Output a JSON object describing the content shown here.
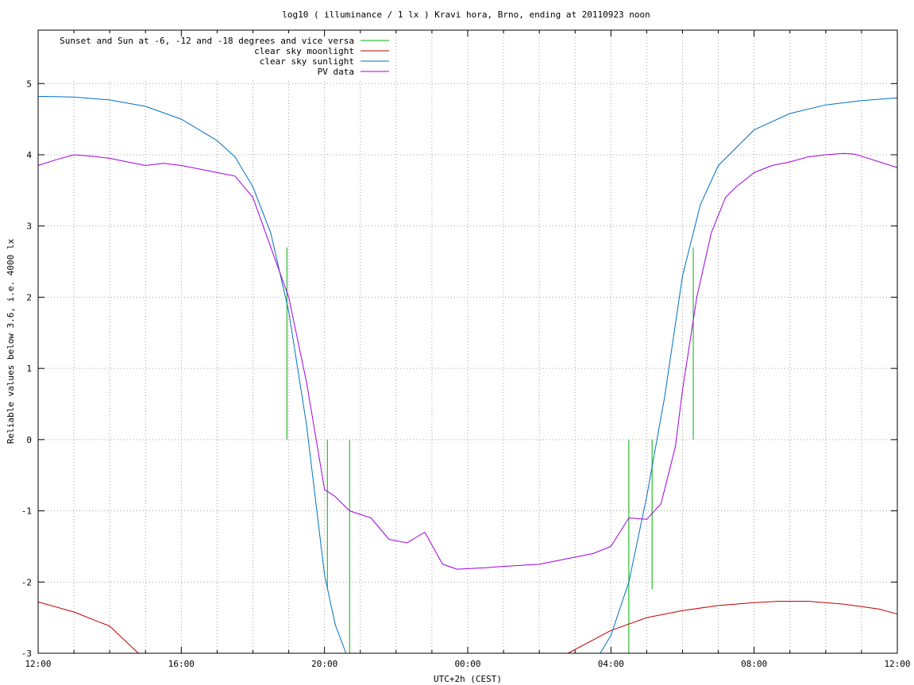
{
  "chart_data": {
    "type": "line",
    "title": "log10 ( illuminance / 1 lx ) Kravi hora, Brno, ending at 20110923 noon",
    "xlabel": "UTC+2h (CEST)",
    "ylabel": "Reliable values below 3.6, i.e. 4000 lx",
    "xlim_hours": [
      0,
      24
    ],
    "ylim": [
      -3,
      5.75
    ],
    "x_ticks": [
      {
        "h": 0,
        "label": "12:00"
      },
      {
        "h": 4,
        "label": "16:00"
      },
      {
        "h": 8,
        "label": "20:00"
      },
      {
        "h": 12,
        "label": "00:00"
      },
      {
        "h": 16,
        "label": "04:00"
      },
      {
        "h": 20,
        "label": "08:00"
      },
      {
        "h": 24,
        "label": "12:00"
      }
    ],
    "y_ticks": [
      -3,
      -2,
      -1,
      0,
      1,
      2,
      3,
      4,
      5
    ],
    "grid": true,
    "legend_position": "top-left",
    "series": [
      {
        "name": "Sunset and Sun at -6, -12 and -18 degrees and vice versa",
        "color": "#00b000",
        "kind": "vertical-markers",
        "markers": [
          {
            "x": 6.95,
            "y_top": 2.7
          },
          {
            "x": 8.08,
            "y_top": -2.1
          },
          {
            "x": 8.7,
            "y_top": -3
          },
          {
            "x": 16.5,
            "y_top": -3
          },
          {
            "x": 17.15,
            "y_top": -2.1
          },
          {
            "x": 18.3,
            "y_top": 2.7
          }
        ]
      },
      {
        "name": "clear sky moonlight",
        "color": "#c00000",
        "x": [
          0,
          1,
          2,
          2.8,
          14.8,
          16,
          17,
          18,
          19,
          20,
          20.7,
          21.5,
          22.5,
          23.5,
          24
        ],
        "y": [
          -2.28,
          -2.42,
          -2.62,
          -3.0,
          -3.0,
          -2.68,
          -2.5,
          -2.4,
          -2.33,
          -2.29,
          -2.27,
          -2.27,
          -2.31,
          -2.38,
          -2.45
        ]
      },
      {
        "name": "clear sky sunlight",
        "color": "#0070c0",
        "x": [
          0,
          1,
          2,
          3,
          4,
          5,
          5.5,
          6,
          6.5,
          7,
          7.5,
          8,
          8.3,
          8.6,
          15.7,
          16,
          16.5,
          17,
          17.5,
          18,
          18.5,
          19,
          20,
          21,
          22,
          23,
          24
        ],
        "y": [
          4.82,
          4.81,
          4.77,
          4.68,
          4.5,
          4.2,
          3.97,
          3.55,
          2.9,
          1.8,
          0.2,
          -1.9,
          -2.6,
          -3.0,
          -3.0,
          -2.75,
          -2.0,
          -0.8,
          0.6,
          2.3,
          3.3,
          3.85,
          4.35,
          4.58,
          4.7,
          4.76,
          4.8
        ]
      },
      {
        "name": "PV data",
        "color": "#a000e0",
        "x": [
          0,
          0.5,
          1,
          1.5,
          2,
          2.5,
          3,
          3.5,
          4,
          4.5,
          5,
          5.5,
          6,
          6.5,
          7,
          7.5,
          8,
          8.3,
          8.7,
          9.3,
          9.8,
          10.3,
          10.8,
          11.3,
          11.7,
          12.5,
          13,
          14,
          14.5,
          15,
          15.5,
          16,
          16.5,
          17,
          17.4,
          17.8,
          18,
          18.4,
          18.8,
          19.2,
          19.5,
          20,
          20.5,
          21,
          21.5,
          22,
          22.5,
          22.8,
          23,
          23.5,
          24
        ],
        "y": [
          3.85,
          3.93,
          4.0,
          3.98,
          3.95,
          3.9,
          3.85,
          3.88,
          3.85,
          3.8,
          3.75,
          3.7,
          3.4,
          2.7,
          2.0,
          0.8,
          -0.7,
          -0.8,
          -1.0,
          -1.1,
          -1.4,
          -1.45,
          -1.3,
          -1.75,
          -1.82,
          -1.8,
          -1.78,
          -1.75,
          -1.7,
          -1.65,
          -1.6,
          -1.5,
          -1.1,
          -1.12,
          -0.9,
          -0.1,
          0.7,
          2.0,
          2.9,
          3.4,
          3.55,
          3.75,
          3.85,
          3.9,
          3.97,
          4.0,
          4.02,
          4.01,
          3.98,
          3.9,
          3.82
        ]
      }
    ]
  }
}
